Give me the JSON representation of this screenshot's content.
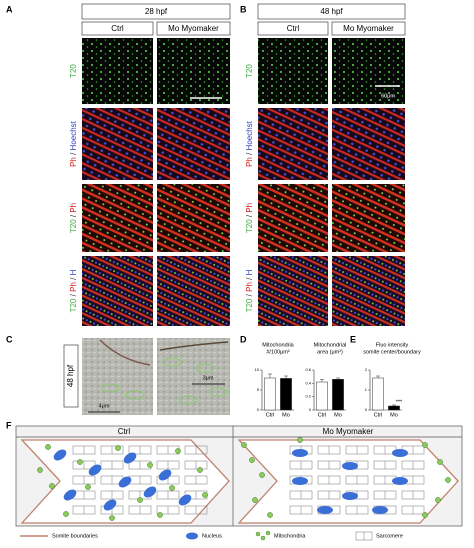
{
  "panel_labels": [
    "A",
    "B",
    "C",
    "D",
    "E",
    "F"
  ],
  "times": [
    "28 hpf",
    "48 hpf"
  ],
  "conditions": [
    "Ctrl",
    "Mo Myomaker"
  ],
  "row_labels": [
    [
      "T20"
    ],
    [
      "Ph",
      " / ",
      "Hoechst"
    ],
    [
      "T20",
      " / ",
      "Ph"
    ],
    [
      "T20",
      " / ",
      "Ph",
      " / ",
      "H"
    ]
  ],
  "scale_bars": [
    "60μm",
    "3μm",
    "4μm"
  ],
  "charts": [
    {
      "type": "bar",
      "title": [
        "Mitochondria",
        "#/100μm²"
      ],
      "categories": [
        "Ctrl",
        "Mo"
      ],
      "values": [
        8.0,
        7.9
      ],
      "errors": [
        1.0,
        0.6
      ],
      "colors": [
        "#ffffff",
        "#000000"
      ],
      "ylim": [
        0,
        10
      ],
      "yticks": [
        0,
        5,
        10
      ]
    },
    {
      "type": "bar",
      "title": [
        "Mitochondrial",
        "area (μm²)"
      ],
      "categories": [
        "Ctrl",
        "Mo"
      ],
      "values": [
        0.42,
        0.46
      ],
      "errors": [
        0.04,
        0.02
      ],
      "colors": [
        "#ffffff",
        "#000000"
      ],
      "ylim": [
        0,
        0.6
      ],
      "yticks": [
        0,
        0.2,
        0.4,
        0.6
      ]
    },
    {
      "type": "bar",
      "title": [
        "Fluo intensity",
        "somite center/boundary"
      ],
      "categories": [
        "Ctrl",
        "Mo"
      ],
      "values": [
        1.6,
        0.2
      ],
      "errors": [
        0.1,
        0.05
      ],
      "colors": [
        "#ffffff",
        "#000000"
      ],
      "ylim": [
        0,
        2
      ],
      "yticks": [
        0,
        1,
        2
      ],
      "annotation": "***"
    }
  ],
  "legend": [
    "Somite boundaries",
    "Nucleus",
    "Mitochondria",
    "Sarcomere"
  ]
}
